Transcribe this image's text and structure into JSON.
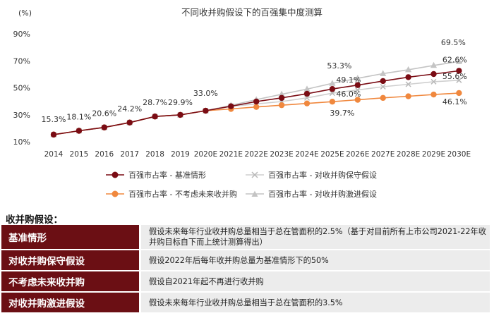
{
  "chart_data": {
    "type": "line",
    "title": "不同收并购假设下的百强集中度测算",
    "y_unit_label": "(%)",
    "ylim": [
      10,
      90
    ],
    "yticks": [
      "10%",
      "30%",
      "50%",
      "70%",
      "90%"
    ],
    "categories": [
      "2014",
      "2015",
      "2016",
      "2017",
      "2018",
      "2019",
      "2020E",
      "2021E",
      "2022E",
      "2023E",
      "2024E",
      "2025E",
      "2026E",
      "2027E",
      "2028E",
      "2029E",
      "2030E"
    ],
    "series": [
      {
        "name": "百强市占率 - 基准情形",
        "color": "#7a0c14",
        "marker": "circle",
        "values": [
          15.3,
          18.1,
          20.6,
          24.2,
          28.7,
          29.9,
          33.0,
          36.3,
          39.8,
          42.5,
          45.6,
          49.1,
          52.0,
          55.0,
          57.9,
          60.2,
          62.6
        ]
      },
      {
        "name": "百强市占率 - 对收并购保守假设",
        "color": "#cfcfcf",
        "marker": "x",
        "values": [
          15.3,
          18.1,
          20.6,
          24.2,
          28.7,
          29.9,
          33.0,
          36.3,
          38.0,
          39.8,
          42.5,
          46.0,
          48.4,
          50.8,
          52.6,
          54.5,
          55.6
        ]
      },
      {
        "name": "百强市占率 - 不考虑未来收并购",
        "color": "#f0883e",
        "marker": "circle",
        "values": [
          15.3,
          18.1,
          20.6,
          24.2,
          28.7,
          29.9,
          33.0,
          34.3,
          35.8,
          37.1,
          38.4,
          39.7,
          41.1,
          42.5,
          43.7,
          45.0,
          46.1
        ]
      },
      {
        "name": "百强市占率 - 对收并购激进假设",
        "color": "#c4c4c4",
        "marker": "triangle",
        "values": [
          15.3,
          18.1,
          20.6,
          24.2,
          28.7,
          29.9,
          33.0,
          37.0,
          41.2,
          45.2,
          49.0,
          53.3,
          57.0,
          60.5,
          63.4,
          66.6,
          69.5
        ]
      }
    ],
    "data_labels": [
      {
        "category": "2014",
        "value": 15.3,
        "text": "15.3%"
      },
      {
        "category": "2015",
        "value": 18.1,
        "text": "18.1%"
      },
      {
        "category": "2016",
        "value": 20.6,
        "text": "20.6%"
      },
      {
        "category": "2017",
        "value": 24.2,
        "text": "24.2%"
      },
      {
        "category": "2018",
        "value": 28.7,
        "text": "28.7%"
      },
      {
        "category": "2019",
        "value": 29.9,
        "text": "29.9%"
      },
      {
        "category": "2020E",
        "value": 33.0,
        "text": "33.0%"
      },
      {
        "category": "2025E",
        "value": 53.3,
        "text": "53.3%"
      },
      {
        "category": "2025E",
        "value": 49.1,
        "text": "49.1%"
      },
      {
        "category": "2025E",
        "value": 46.0,
        "text": "46.0%"
      },
      {
        "category": "2025E",
        "value": 39.7,
        "text": "39.7%"
      },
      {
        "category": "2030E",
        "value": 69.5,
        "text": "69.5%"
      },
      {
        "category": "2030E",
        "value": 62.6,
        "text": "62.6%"
      },
      {
        "category": "2030E",
        "value": 55.6,
        "text": "55.6%"
      },
      {
        "category": "2030E",
        "value": 46.1,
        "text": "46.1%"
      }
    ],
    "legend_placement": "bottom",
    "grid": false
  },
  "assumptions": {
    "title": "收并购假设：",
    "rows": [
      {
        "label": "基准情形",
        "description": "假设未来每年行业收并购总量相当于总在管面积的2.5%（基于对目前所有上市公司2021-22年收并购目标自下而上统计测算得出）"
      },
      {
        "label": "对收并购保守假设",
        "description": "假设2022年后每年收并购总量为基准情形下的50%"
      },
      {
        "label": "不考虑未来收并购",
        "description": "假设自2021年起不再进行收并购"
      },
      {
        "label": "对收并购激进假设",
        "description": "假设未来每年行业收并购总量相当于总在管面积的3.5%"
      }
    ]
  }
}
